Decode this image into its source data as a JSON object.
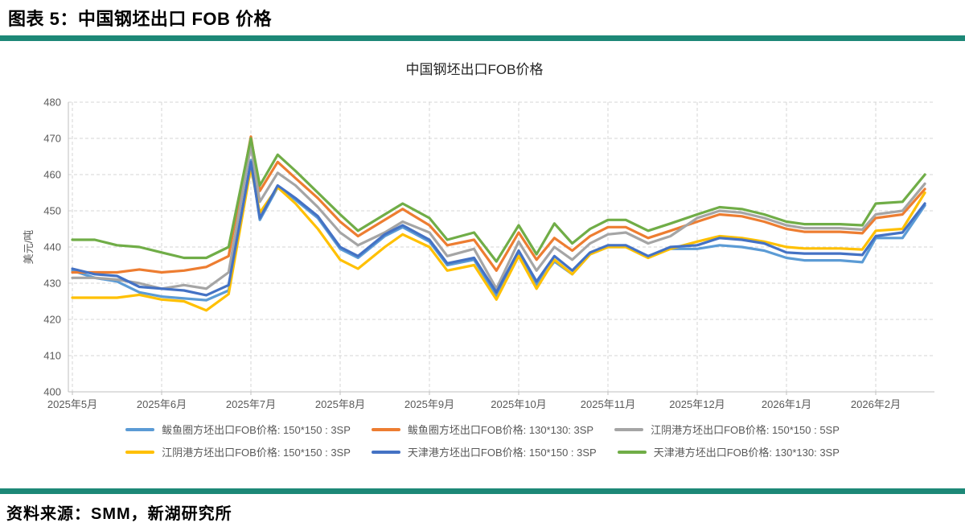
{
  "page": {
    "header_title": "图表 5：中国钢坯出口 FOB 价格",
    "source_text": "资料来源：SMM，新湖研究所",
    "accent_color": "#1d8877"
  },
  "chart_data": {
    "type": "line",
    "title": "中国钢坯出口FOB价格",
    "ylabel": "美元/吨",
    "ylim": [
      400,
      480
    ],
    "ytick_step": 10,
    "grid": "dashed",
    "legend_position": "bottom",
    "x_months": [
      "2025年5月",
      "2025年6月",
      "2025年7月",
      "2025年8月",
      "2025年9月",
      "2025年10月",
      "2025年11月",
      "2025年12月",
      "2026年1月",
      "2026年2月"
    ],
    "x": [
      0,
      0.25,
      0.5,
      0.75,
      1,
      1.25,
      1.5,
      1.75,
      2,
      2.1,
      2.3,
      2.5,
      2.75,
      3,
      3.2,
      3.5,
      3.7,
      4,
      4.2,
      4.5,
      4.75,
      5,
      5.2,
      5.4,
      5.6,
      5.8,
      6,
      6.2,
      6.45,
      6.7,
      7,
      7.25,
      7.5,
      7.75,
      8,
      8.2,
      8.4,
      8.6,
      8.85,
      9,
      9.3,
      9.55
    ],
    "series": [
      {
        "name": "鲅鱼圈方坯出口FOB价格: 150*150 : 3SP",
        "color": "#5B9BD5",
        "values": [
          433.5,
          431.5,
          430.5,
          427.5,
          426.3,
          425.8,
          425.3,
          428,
          464,
          447.5,
          456.5,
          453,
          448,
          439.5,
          437,
          443,
          445.5,
          441.5,
          435,
          436.5,
          426.5,
          438.5,
          429.5,
          436,
          432.5,
          438,
          440,
          440,
          437.5,
          439.5,
          439.5,
          440.5,
          440,
          439,
          437,
          436.3,
          436.3,
          436.3,
          435.8,
          442.5,
          442.5,
          451.5
        ]
      },
      {
        "name": "鲅鱼圈方坯出口FOB价格: 130*130: 3SP",
        "color": "#ED7D31",
        "values": [
          433,
          433,
          433,
          433.8,
          433,
          433.5,
          434.5,
          437.5,
          470.5,
          455.5,
          463.5,
          459,
          453.5,
          447,
          443,
          447.5,
          450.5,
          446,
          440.5,
          442,
          433.5,
          444,
          436.5,
          442.5,
          439,
          443,
          445.5,
          445.5,
          442.5,
          444.5,
          447,
          449,
          448.5,
          447,
          445,
          444.2,
          444.2,
          444.2,
          443.8,
          448,
          449,
          456
        ]
      },
      {
        "name": "江阴港方坯出口FOB价格: 150*150 : 5SP",
        "color": "#A5A5A5",
        "values": [
          431.5,
          431.5,
          431,
          430,
          428.5,
          429.5,
          428.5,
          433,
          468,
          452.5,
          460.5,
          457,
          451,
          444,
          440.5,
          444,
          447,
          444,
          437.5,
          439.5,
          428.5,
          441.5,
          433.5,
          440,
          436.5,
          441,
          443.5,
          444,
          441,
          443,
          448,
          450,
          449.5,
          448,
          446,
          445.2,
          445.2,
          445.2,
          444.8,
          449,
          450,
          457.5
        ]
      },
      {
        "name": "江阴港方坯出口FOB价格: 150*150 : 3SP",
        "color": "#FFC000",
        "values": [
          426,
          426,
          426,
          426.8,
          425.5,
          425,
          422.5,
          427,
          462,
          449.5,
          456.5,
          452,
          445,
          436.5,
          434,
          440,
          443.5,
          440,
          433.5,
          435,
          425.5,
          437.5,
          428.5,
          436.5,
          432.5,
          438,
          440,
          440,
          437,
          439.5,
          441.5,
          443,
          442.5,
          441.5,
          440,
          439.6,
          439.6,
          439.6,
          439.3,
          444.5,
          445,
          455
        ]
      },
      {
        "name": "天津港方坯出口FOB价格: 150*150 : 3SP",
        "color": "#4472C4",
        "values": [
          434,
          432.5,
          432,
          429,
          428.5,
          428,
          426.7,
          429.5,
          463.5,
          448,
          457,
          453.5,
          448.5,
          440,
          437.5,
          443.5,
          446,
          442,
          435.5,
          437,
          427.5,
          439,
          430.5,
          437.5,
          433.5,
          438.5,
          440.5,
          440.5,
          437.5,
          440,
          440.5,
          442.5,
          442,
          441,
          438.5,
          438.2,
          438.2,
          438.2,
          437.8,
          443,
          444,
          452
        ]
      },
      {
        "name": "天津港方坯出口FOB价格: 130*130: 3SP",
        "color": "#70AD47",
        "values": [
          442,
          442,
          440.5,
          440,
          438.5,
          437,
          437,
          440,
          470,
          457,
          465.5,
          461,
          455,
          449,
          444.5,
          449,
          452,
          448,
          442,
          444,
          436,
          446,
          438,
          446.5,
          441,
          445,
          447.5,
          447.5,
          444.5,
          446.5,
          449,
          451,
          450.5,
          449,
          447,
          446.3,
          446.3,
          446.3,
          446,
          452,
          452.5,
          460
        ]
      }
    ]
  }
}
